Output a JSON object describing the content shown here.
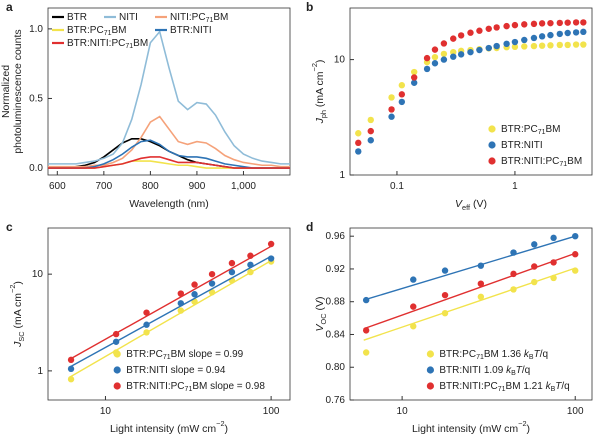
{
  "chart_data": [
    {
      "type": "line",
      "label": "a",
      "xlabel": "Wavelength (nm)",
      "ylabel": [
        "Normalized",
        "photoluminescence counts"
      ],
      "xlim": [
        580,
        1100
      ],
      "ylim": [
        -0.05,
        1.15
      ],
      "xticks": [
        600,
        700,
        800,
        900,
        {
          "value": 1000,
          "label": "1,000"
        }
      ],
      "yticks": [
        {
          "value": 0,
          "label": "0.0"
        },
        0.5,
        {
          "value": 1,
          "label": "1.0"
        }
      ],
      "legend": "upper left",
      "x": [
        580,
        600,
        620,
        640,
        660,
        680,
        700,
        720,
        740,
        760,
        780,
        800,
        820,
        840,
        860,
        880,
        900,
        920,
        940,
        960,
        980,
        1000,
        1020,
        1040,
        1060,
        1080,
        1100
      ],
      "series": [
        {
          "name": "BTR",
          "color": "#000000",
          "values": [
            0,
            0,
            0,
            0.01,
            0.02,
            0.04,
            0.08,
            0.13,
            0.18,
            0.21,
            0.21,
            0.19,
            0.16,
            0.12,
            0.09,
            0.06,
            0.04,
            0.03,
            0.02,
            0.01,
            0,
            0,
            0,
            0,
            0,
            0,
            0
          ]
        },
        {
          "name": "NITI",
          "color": "#8fbcd8",
          "values": [
            0.03,
            0.03,
            0.03,
            0.03,
            0.04,
            0.05,
            0.07,
            0.1,
            0.18,
            0.35,
            0.6,
            0.9,
            0.98,
            0.72,
            0.48,
            0.42,
            0.47,
            0.46,
            0.38,
            0.26,
            0.16,
            0.1,
            0.07,
            0.05,
            0.04,
            0.03,
            0.03
          ]
        },
        {
          "name": "NITI:PC71BM",
          "color": "#f5a27a",
          "values": [
            0.01,
            0.01,
            0.01,
            0.01,
            0.01,
            0.02,
            0.02,
            0.04,
            0.07,
            0.13,
            0.22,
            0.33,
            0.37,
            0.28,
            0.19,
            0.17,
            0.19,
            0.18,
            0.14,
            0.09,
            0.06,
            0.04,
            0.03,
            0.02,
            0.02,
            0.01,
            0.01
          ]
        },
        {
          "name": "BTR:PC71BM",
          "color": "#f2e34c",
          "values": [
            0,
            0,
            0,
            0,
            0,
            0,
            0.01,
            0.02,
            0.03,
            0.05,
            0.05,
            0.05,
            0.04,
            0.03,
            0.02,
            0.02,
            0.01,
            0,
            0,
            0,
            0,
            0,
            0,
            0,
            0,
            0,
            0
          ]
        },
        {
          "name": "BTR:NITI",
          "color": "#2e74b5",
          "values": [
            0,
            0,
            0,
            0,
            0,
            0.01,
            0.03,
            0.06,
            0.1,
            0.15,
            0.19,
            0.2,
            0.17,
            0.12,
            0.09,
            0.08,
            0.08,
            0.07,
            0.05,
            0.03,
            0.02,
            0.01,
            0,
            0,
            0,
            0,
            0
          ]
        },
        {
          "name": "BTR:NITI:PC71BM",
          "color": "#e03030",
          "values": [
            0,
            0,
            0,
            0,
            0,
            0,
            0.01,
            0.02,
            0.03,
            0.05,
            0.07,
            0.08,
            0.08,
            0.06,
            0.04,
            0.04,
            0.04,
            0.03,
            0.02,
            0.01,
            0,
            0,
            0,
            0,
            0,
            0,
            0
          ]
        }
      ]
    },
    {
      "type": "scatter",
      "label": "b",
      "xlabel": "Veff (V)",
      "ylabel": [
        "Jph (mA cm−2)"
      ],
      "xscale": "log",
      "yscale": "log",
      "xlim": [
        0.04,
        4.5
      ],
      "ylim": [
        1,
        28
      ],
      "xticks": [
        0.1,
        1
      ],
      "yticks": [
        1,
        10
      ],
      "legend": "lower right",
      "x": [
        0.047,
        0.06,
        0.09,
        0.11,
        0.14,
        0.18,
        0.21,
        0.25,
        0.3,
        0.35,
        0.42,
        0.5,
        0.6,
        0.7,
        0.85,
        1.0,
        1.2,
        1.45,
        1.7,
        2.0,
        2.4,
        2.8,
        3.3,
        3.8
      ],
      "series": [
        {
          "name": "BTR:PC71BM",
          "color": "#f2e34c",
          "values": [
            2.3,
            3.0,
            4.7,
            6.0,
            7.8,
            9.5,
            10.5,
            11.2,
            11.6,
            11.9,
            12.1,
            12.3,
            12.5,
            12.6,
            12.8,
            12.9,
            13.0,
            13.1,
            13.2,
            13.3,
            13.4,
            13.4,
            13.5,
            13.5
          ]
        },
        {
          "name": "BTR:NITI",
          "color": "#2e74b5",
          "values": [
            1.6,
            2.0,
            3.2,
            4.3,
            6.3,
            8.3,
            9.3,
            10.0,
            10.6,
            11.1,
            11.6,
            12.1,
            12.6,
            13.1,
            13.7,
            14.2,
            14.8,
            15.4,
            15.9,
            16.3,
            16.7,
            17.0,
            17.2,
            17.4
          ]
        },
        {
          "name": "BTR:NITI:PC71BM",
          "color": "#e03030",
          "values": [
            1.9,
            2.4,
            3.7,
            5.0,
            7.0,
            10.3,
            12.2,
            13.8,
            15.2,
            16.2,
            17.1,
            17.8,
            18.5,
            19.0,
            19.5,
            19.9,
            20.2,
            20.4,
            20.6,
            20.7,
            20.8,
            20.9,
            21.0,
            21.0
          ]
        }
      ]
    },
    {
      "type": "scatter",
      "label": "c",
      "xlabel": "Light intensity (mW cm−2)",
      "ylabel": [
        "JSC (mA cm−2)"
      ],
      "xscale": "log",
      "yscale": "log",
      "xlim": [
        4.5,
        130
      ],
      "ylim": [
        0.5,
        30
      ],
      "xticks": [
        10,
        100
      ],
      "yticks": [
        1,
        10
      ],
      "legend": "lower right",
      "x": [
        6.2,
        11.6,
        17.7,
        28.5,
        34.5,
        44,
        58,
        75,
        100
      ],
      "fit_x": [
        6,
        100
      ],
      "series": [
        {
          "name": "BTR:PC71BM slope = 0.99",
          "color": "#f2e34c",
          "values": [
            0.82,
            1.55,
            2.5,
            4.2,
            5.2,
            6.5,
            8.6,
            10.5,
            13.5
          ],
          "fit": [
            0.85,
            13.8
          ]
        },
        {
          "name": "BTR:NITI slope = 0.94",
          "color": "#2e74b5",
          "values": [
            1.05,
            2.0,
            3.0,
            5.0,
            6.2,
            8.0,
            10.5,
            12.5,
            14.5
          ],
          "fit": [
            1.08,
            15.3
          ]
        },
        {
          "name": "BTR:NITI:PC71BM slope = 0.98",
          "color": "#e03030",
          "values": [
            1.3,
            2.4,
            4.0,
            6.3,
            7.8,
            10.0,
            13.0,
            15.5,
            20.5
          ],
          "fit": [
            1.3,
            19.4
          ]
        }
      ]
    },
    {
      "type": "scatter",
      "label": "d",
      "xlabel": "Light intensity (mW cm−2)",
      "ylabel": [
        "VOC (V)"
      ],
      "xscale": "log",
      "xlim": [
        5,
        125
      ],
      "ylim": [
        0.76,
        0.97
      ],
      "xticks": [
        10,
        100
      ],
      "yticks": [
        0.76,
        {
          "value": 0.8,
          "label": "0.80"
        },
        0.84,
        0.88,
        0.92,
        0.96
      ],
      "legend": "lower right",
      "x": [
        6.2,
        11.6,
        17.7,
        28.5,
        44,
        58,
        75,
        100
      ],
      "fit_x": [
        6,
        100
      ],
      "series": [
        {
          "name": "BTR:PC71BM 1.36 kBT/q",
          "color": "#f2e34c",
          "values": [
            0.818,
            0.85,
            0.866,
            0.886,
            0.895,
            0.904,
            0.909,
            0.918
          ],
          "fit": [
            0.833,
            0.921
          ]
        },
        {
          "name": "BTR:NITI 1.09 kBT/q",
          "color": "#2e74b5",
          "values": [
            0.882,
            0.907,
            0.918,
            0.924,
            0.94,
            0.95,
            0.958,
            0.96
          ],
          "fit": [
            0.882,
            0.96
          ]
        },
        {
          "name": "BTR:NITI:PC71BM 1.21 kBT/q",
          "color": "#e03030",
          "values": [
            0.845,
            0.874,
            0.888,
            0.902,
            0.914,
            0.923,
            0.928,
            0.938
          ],
          "fit": [
            0.847,
            0.939
          ]
        }
      ]
    }
  ]
}
